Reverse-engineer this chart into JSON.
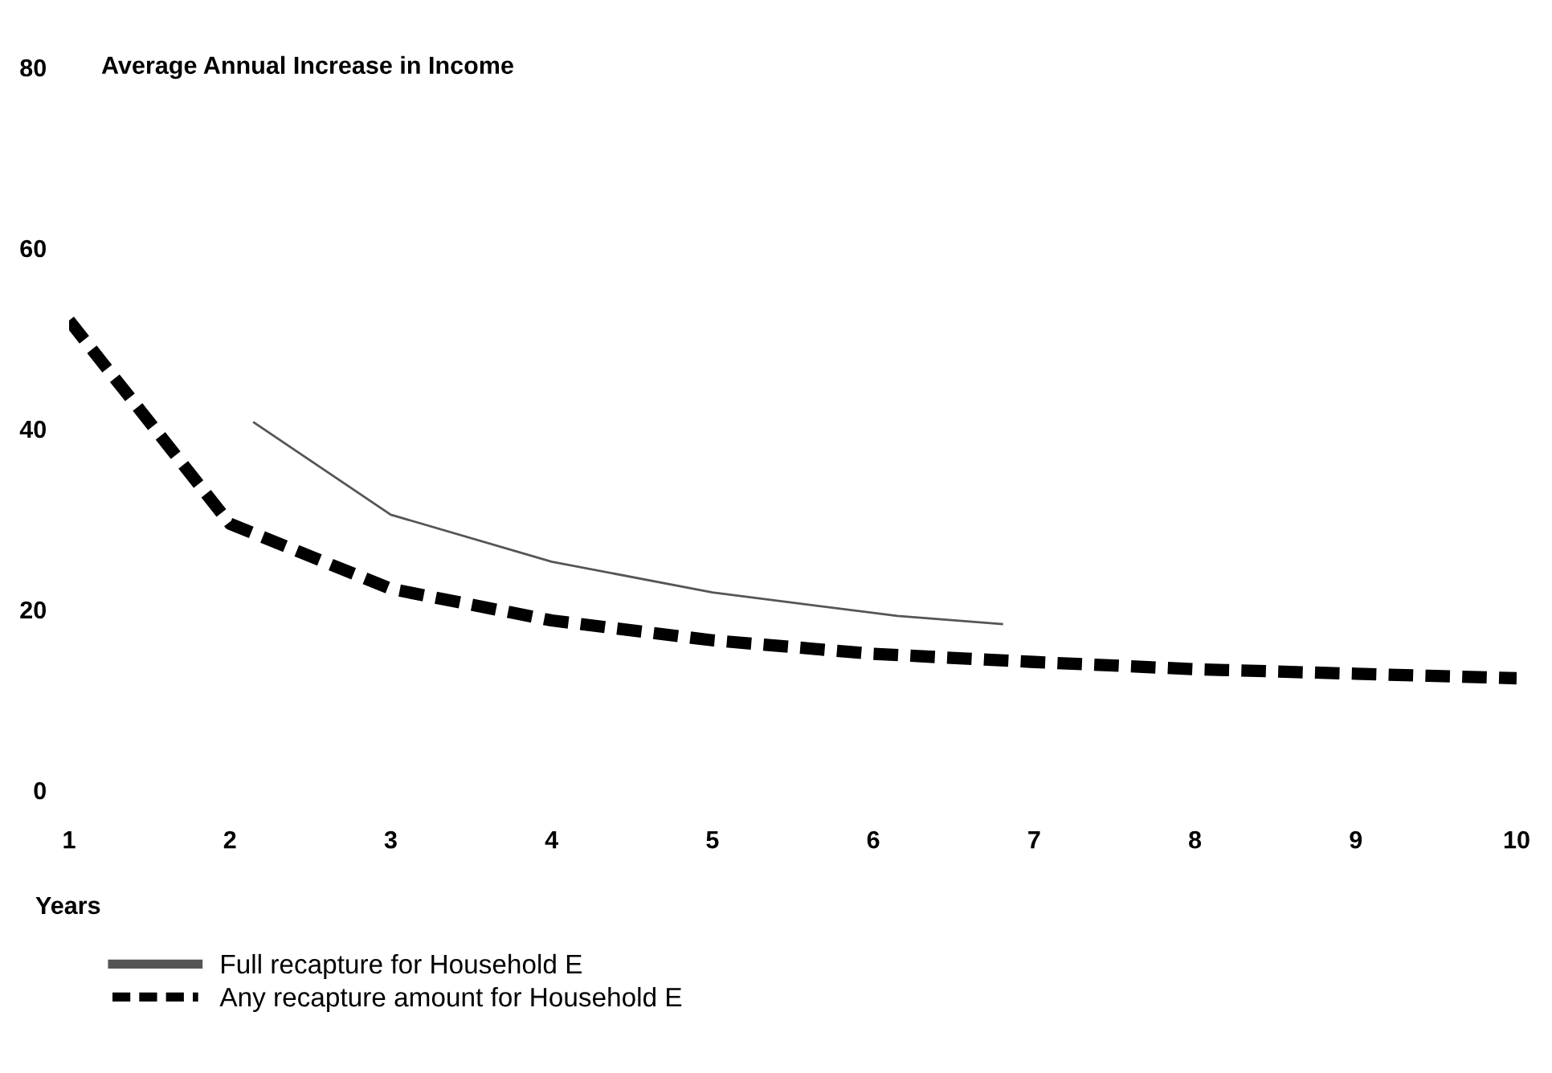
{
  "chart_data": {
    "type": "line",
    "title": "Average Annual Increase in Income",
    "xlabel": "Years",
    "xlim": [
      1,
      10
    ],
    "xticks": [
      1,
      2,
      3,
      4,
      5,
      6,
      7,
      8,
      9,
      10
    ],
    "ylim": [
      0,
      80
    ],
    "yticks": [
      0,
      20,
      40,
      60,
      80
    ],
    "grid": false,
    "legend": "bottom",
    "series": [
      {
        "name": "Full recapture for Household E",
        "color": "#555555",
        "line_style": "solid",
        "x": [
          2.15,
          3,
          4,
          5,
          6.15,
          6.8
        ],
        "values": [
          40.7,
          30.5,
          25.3,
          21.9,
          19.3,
          18.4
        ]
      },
      {
        "name": "Any recapture amount for Household E",
        "color": "#000000",
        "line_style": "dashed",
        "x": [
          1,
          2,
          3,
          4,
          5,
          6,
          7,
          8,
          9,
          10
        ],
        "values": [
          52,
          29.5,
          22.3,
          18.8,
          16.6,
          15.1,
          14.2,
          13.4,
          12.9,
          12.4
        ]
      }
    ]
  }
}
